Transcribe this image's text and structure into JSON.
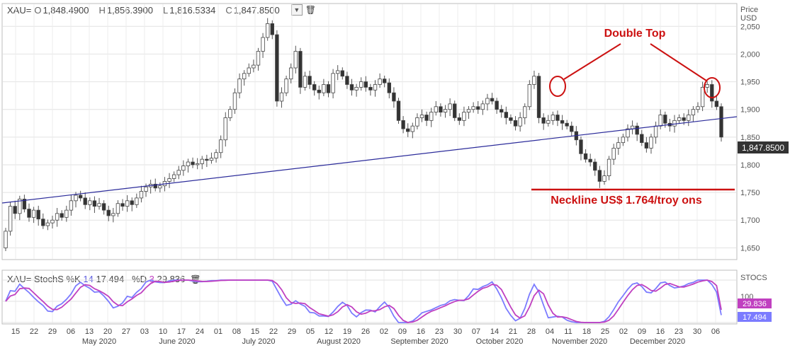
{
  "header": {
    "symbol": "XAU=",
    "open_label": "O",
    "open": "1,848.4900",
    "high_label": "H",
    "high": "1,856.3900",
    "low_label": "L",
    "low": "1,816.5334",
    "close_label": "C",
    "close": "1,847.8500"
  },
  "stoch_header": {
    "symbol": "XAU=",
    "name": "StochS",
    "k_label": "%K",
    "k_period": "14",
    "k_value": "17.494",
    "d_label": "%D",
    "d_period": "3",
    "d_value": "29.836"
  },
  "price_axis": {
    "title1": "Price",
    "title2": "USD",
    "ticks": [
      "2,050",
      "2,000",
      "1,950",
      "1,900",
      "1,850",
      "1,800",
      "1,750",
      "1,700",
      "1,650"
    ],
    "tick_values": [
      2050,
      2000,
      1950,
      1900,
      1850,
      1800,
      1750,
      1700,
      1650
    ]
  },
  "stoch_axis": {
    "title": "STOCS",
    "ticks": [
      "100",
      "50"
    ]
  },
  "last_price_tag": "1,847.8500",
  "k_tag": "17.494",
  "d_tag": "29.836",
  "date_ticks": [
    "15",
    "22",
    "29",
    "06",
    "13",
    "20",
    "27",
    "03",
    "10",
    "17",
    "24",
    "01",
    "08",
    "15",
    "22",
    "29",
    "05",
    "12",
    "19",
    "26",
    "02",
    "09",
    "16",
    "23",
    "30",
    "07",
    "14",
    "21",
    "28",
    "04",
    "11",
    "18",
    "25",
    "02",
    "09",
    "16",
    "23",
    "30",
    "06"
  ],
  "month_labels": [
    "May 2020",
    "June 2020",
    "July 2020",
    "August 2020",
    "September 2020",
    "October 2020",
    "November 2020",
    "December 2020"
  ],
  "annotations": {
    "double_top": "Double Top",
    "neckline": "Neckline US$ 1.764/troy ons"
  },
  "colors": {
    "trendline": "#2b2b9a",
    "annotation": "#cc1111",
    "k_line": "#7b7bff",
    "d_line": "#c040c0",
    "grid": "#e2e2e2"
  },
  "chart_data": {
    "type": "candlestick",
    "ylabel": "Price USD",
    "ylim": [
      1630,
      2090
    ],
    "closes": [
      1680,
      1725,
      1712,
      1738,
      1720,
      1705,
      1718,
      1702,
      1690,
      1695,
      1700,
      1712,
      1705,
      1718,
      1735,
      1745,
      1740,
      1728,
      1735,
      1725,
      1730,
      1718,
      1708,
      1712,
      1730,
      1725,
      1735,
      1728,
      1740,
      1752,
      1760,
      1765,
      1758,
      1762,
      1770,
      1775,
      1782,
      1790,
      1798,
      1805,
      1800,
      1802,
      1810,
      1808,
      1812,
      1822,
      1845,
      1885,
      1900,
      1930,
      1955,
      1965,
      1975,
      1980,
      2005,
      2030,
      2055,
      2035,
      1915,
      1930,
      1955,
      1975,
      2005,
      1940,
      1960,
      1945,
      1935,
      1930,
      1945,
      1930,
      1965,
      1970,
      1960,
      1945,
      1935,
      1940,
      1950,
      1940,
      1935,
      1945,
      1955,
      1948,
      1930,
      1915,
      1880,
      1865,
      1860,
      1870,
      1885,
      1890,
      1880,
      1895,
      1905,
      1895,
      1900,
      1910,
      1885,
      1880,
      1895,
      1900,
      1905,
      1900,
      1910,
      1920,
      1915,
      1900,
      1895,
      1885,
      1880,
      1870,
      1885,
      1905,
      1945,
      1960,
      1885,
      1875,
      1880,
      1890,
      1880,
      1875,
      1870,
      1860,
      1845,
      1820,
      1810,
      1805,
      1790,
      1770,
      1780,
      1810,
      1830,
      1840,
      1850,
      1865,
      1870,
      1855,
      1840,
      1830,
      1850,
      1870,
      1890,
      1875,
      1870,
      1880,
      1885,
      1880,
      1890,
      1900,
      1905,
      1940,
      1945,
      1915,
      1905,
      1850
    ],
    "last": 1847.85,
    "neckline": 1764,
    "stoch_k_last": 17.494,
    "stoch_d_last": 29.836
  }
}
